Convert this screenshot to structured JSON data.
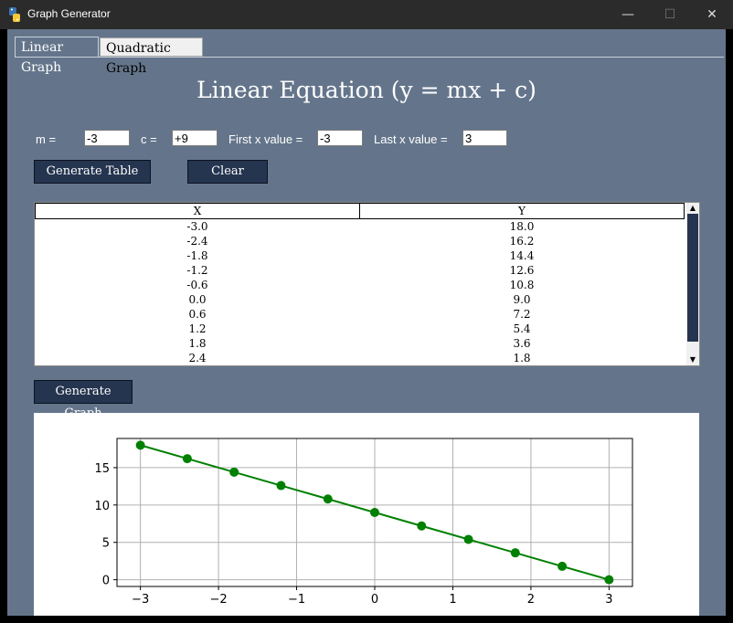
{
  "window": {
    "title": "Graph Generator",
    "minimize": "—",
    "maximize": "☐",
    "close": "✕",
    "icon": "python-icon"
  },
  "tabs": [
    {
      "label": "Linear Graph",
      "active": true
    },
    {
      "label": "Quadratic Graph",
      "active": false
    }
  ],
  "heading": "Linear Equation (y = mx + c)",
  "form": {
    "m_label": "m =",
    "m_value": "-3",
    "c_label": "c =",
    "c_value": "+9",
    "first_label": "First x value =",
    "first_value": "-3",
    "last_label": "Last x value =",
    "last_value": "3"
  },
  "buttons": {
    "generate_table": "Generate Table",
    "clear": "Clear",
    "generate_graph": "Generate Graph"
  },
  "table": {
    "columns": [
      "X",
      "Y"
    ],
    "rows": [
      [
        "-3.0",
        "18.0"
      ],
      [
        "-2.4",
        "16.2"
      ],
      [
        "-1.8",
        "14.4"
      ],
      [
        "-1.2",
        "12.6"
      ],
      [
        "-0.6",
        "10.8"
      ],
      [
        "0.0",
        "9.0"
      ],
      [
        "0.6",
        "7.2"
      ],
      [
        "1.2",
        "5.4"
      ],
      [
        "1.8",
        "3.6"
      ],
      [
        "2.4",
        "1.8"
      ]
    ]
  },
  "colors": {
    "background": "#64758b",
    "button": "#253550",
    "line": "#008000"
  },
  "chart_data": {
    "type": "line",
    "x": [
      -3.0,
      -2.4,
      -1.8,
      -1.2,
      -0.6,
      0.0,
      0.6,
      1.2,
      1.8,
      2.4,
      3.0
    ],
    "series": [
      {
        "values": [
          18.0,
          16.2,
          14.4,
          12.6,
          10.8,
          9.0,
          7.2,
          5.4,
          3.6,
          1.8,
          0.0
        ],
        "color": "#008000",
        "marker": "circle"
      }
    ],
    "xticks": [
      -3,
      -2,
      -1,
      0,
      1,
      2,
      3
    ],
    "xtick_labels": [
      "−3",
      "−2",
      "−1",
      "0",
      "1",
      "2",
      "3"
    ],
    "yticks": [
      0,
      5,
      10,
      15
    ],
    "yticklabels": [
      "0",
      "5",
      "10",
      "15"
    ],
    "xlim": [
      -3.3,
      3.3
    ],
    "ylim": [
      -0.9,
      18.9
    ],
    "grid": true,
    "title": "",
    "xlabel": "",
    "ylabel": ""
  }
}
